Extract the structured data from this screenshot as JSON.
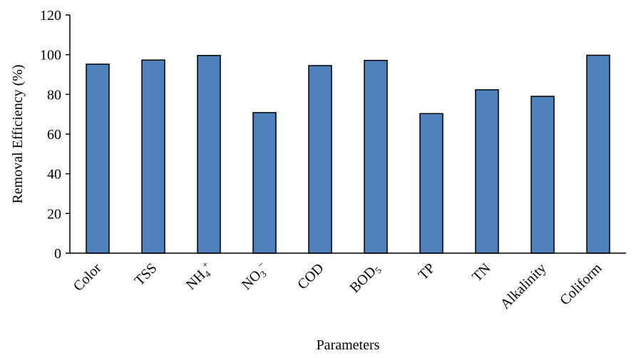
{
  "chart_data": {
    "type": "bar",
    "title": "",
    "xlabel": "Parameters",
    "ylabel": "Removal Efficiency (%)",
    "ylim": [
      0,
      120
    ],
    "yticks": [
      0,
      20,
      40,
      60,
      80,
      100,
      120
    ],
    "grid": false,
    "legend": "none",
    "categories": [
      {
        "base": "Color"
      },
      {
        "base": "TSS"
      },
      {
        "base": "NH",
        "sub": "4",
        "sup": "+"
      },
      {
        "base": "NO",
        "sub": "3",
        "sup": "−"
      },
      {
        "base": "COD"
      },
      {
        "base": "BOD",
        "sub": "5"
      },
      {
        "base": "TP"
      },
      {
        "base": "TN"
      },
      {
        "base": "Alkalinity"
      },
      {
        "base": "Coliform"
      }
    ],
    "values": [
      95.2,
      97.3,
      99.6,
      70.8,
      94.5,
      97.1,
      70.3,
      82.3,
      79.0,
      99.7
    ],
    "colors": {
      "bar_fill": "#4f81bd",
      "bar_stroke": "#000000",
      "axis": "#000000"
    }
  }
}
